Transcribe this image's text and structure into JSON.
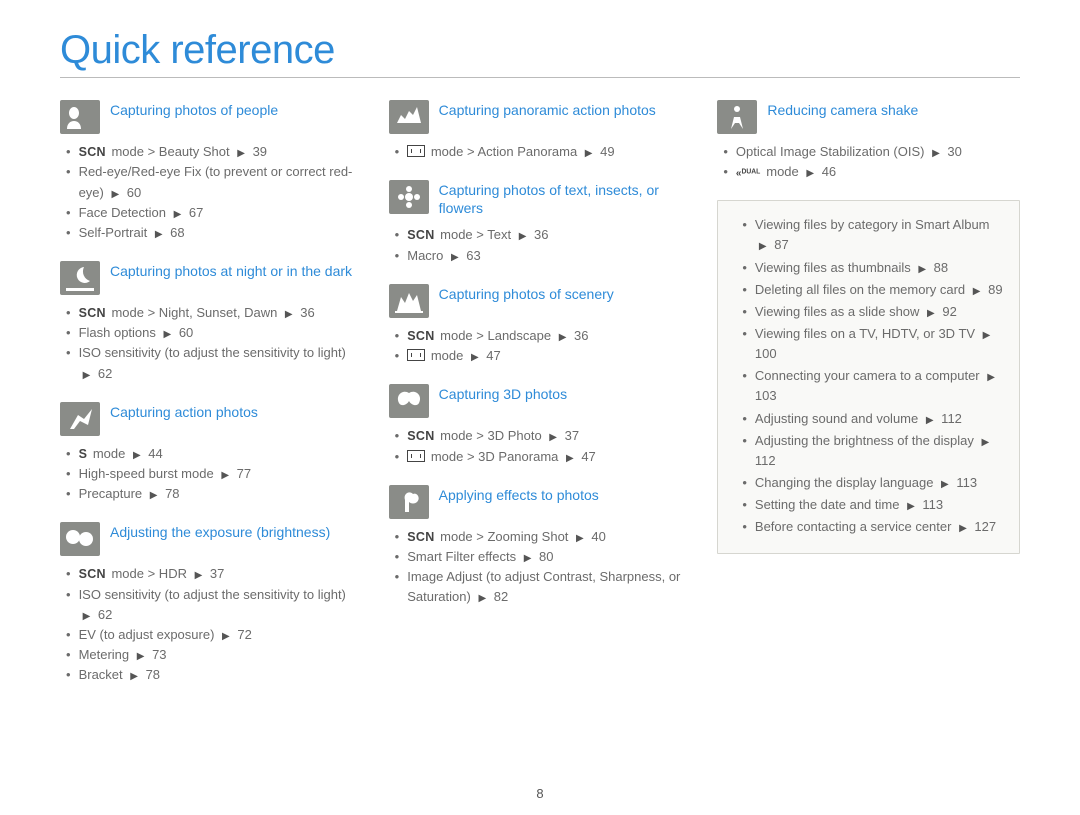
{
  "page": {
    "title": "Quick reference",
    "number": "8",
    "accent_color": "#2e8bd8",
    "text_color": "#6b6b6b",
    "icon_bg": "#8a8c88"
  },
  "col1": {
    "s1": {
      "title": "Capturing photos of people",
      "items": [
        {
          "pre": "SCN",
          "text": " mode > Beauty Shot ▶ 39"
        },
        {
          "text": "Red-eye/Red-eye Fix (to prevent or correct red-eye) ▶ 60"
        },
        {
          "text": "Face Detection ▶ 67"
        },
        {
          "text": "Self-Portrait ▶ 68"
        }
      ]
    },
    "s2": {
      "title": "Capturing photos at night or in the dark",
      "items": [
        {
          "pre": "SCN",
          "text": " mode > Night, Sunset, Dawn ▶ 36"
        },
        {
          "text": "Flash options ▶ 60"
        },
        {
          "text": "ISO sensitivity (to adjust the sensitivity to light) ▶ 62"
        }
      ]
    },
    "s3": {
      "title": "Capturing action photos",
      "items": [
        {
          "pre": "S",
          "text": " mode ▶ 44"
        },
        {
          "text": "High-speed burst mode ▶ 77"
        },
        {
          "text": "Precapture ▶ 78"
        }
      ]
    },
    "s4": {
      "title": "Adjusting the exposure (brightness)",
      "items": [
        {
          "pre": "SCN",
          "text": " mode > HDR ▶ 37"
        },
        {
          "text": "ISO sensitivity (to adjust the sensitivity to light) ▶ 62"
        },
        {
          "text": "EV (to adjust exposure) ▶ 72"
        },
        {
          "text": "Metering ▶ 73"
        },
        {
          "text": "Bracket ▶ 78"
        }
      ]
    }
  },
  "col2": {
    "s1": {
      "title": "Capturing panoramic action photos",
      "items": [
        {
          "pre": "PANO",
          "text": " mode > Action Panorama ▶ 49"
        }
      ]
    },
    "s2": {
      "title": "Capturing photos of text, insects, or flowers",
      "items": [
        {
          "pre": "SCN",
          "text": " mode > Text ▶ 36"
        },
        {
          "text": "Macro ▶ 63"
        }
      ]
    },
    "s3": {
      "title": "Capturing photos of scenery",
      "items": [
        {
          "pre": "SCN",
          "text": " mode > Landscape ▶ 36"
        },
        {
          "pre": "PANO",
          "text": " mode ▶ 47"
        }
      ]
    },
    "s4": {
      "title": "Capturing 3D photos",
      "items": [
        {
          "pre": "SCN",
          "text": " mode > 3D Photo ▶ 37"
        },
        {
          "pre": "PANO",
          "text": " mode > 3D Panorama ▶ 47"
        }
      ]
    },
    "s5": {
      "title": "Applying effects to photos",
      "items": [
        {
          "pre": "SCN",
          "text": " mode > Zooming Shot ▶ 40"
        },
        {
          "text": "Smart Filter effects ▶ 80"
        },
        {
          "text": "Image Adjust (to adjust Contrast, Sharpness, or Saturation) ▶ 82"
        }
      ]
    }
  },
  "col3": {
    "s1": {
      "title": "Reducing camera shake",
      "items": [
        {
          "text": "Optical Image Stabilization (OIS) ▶ 30"
        },
        {
          "pre": "DUAL",
          "text": " mode ▶ 46"
        }
      ]
    },
    "box": {
      "items": [
        {
          "text": "Viewing files by category in Smart Album ▶ 87"
        },
        {
          "text": "Viewing files as thumbnails ▶ 88"
        },
        {
          "text": "Deleting all files on the memory card ▶ 89"
        },
        {
          "text": "Viewing files as a slide show ▶ 92"
        },
        {
          "text": "Viewing files on a TV, HDTV, or 3D TV ▶ 100"
        },
        {
          "text": "Connecting your camera to a computer ▶ 103"
        },
        {
          "text": "Adjusting sound and volume ▶ 112"
        },
        {
          "text": "Adjusting the brightness of the display ▶ 112"
        },
        {
          "text": "Changing the display language ▶ 113"
        },
        {
          "text": "Setting the date and time ▶ 113"
        },
        {
          "text": "Before contacting a service center ▶ 127"
        }
      ]
    }
  }
}
